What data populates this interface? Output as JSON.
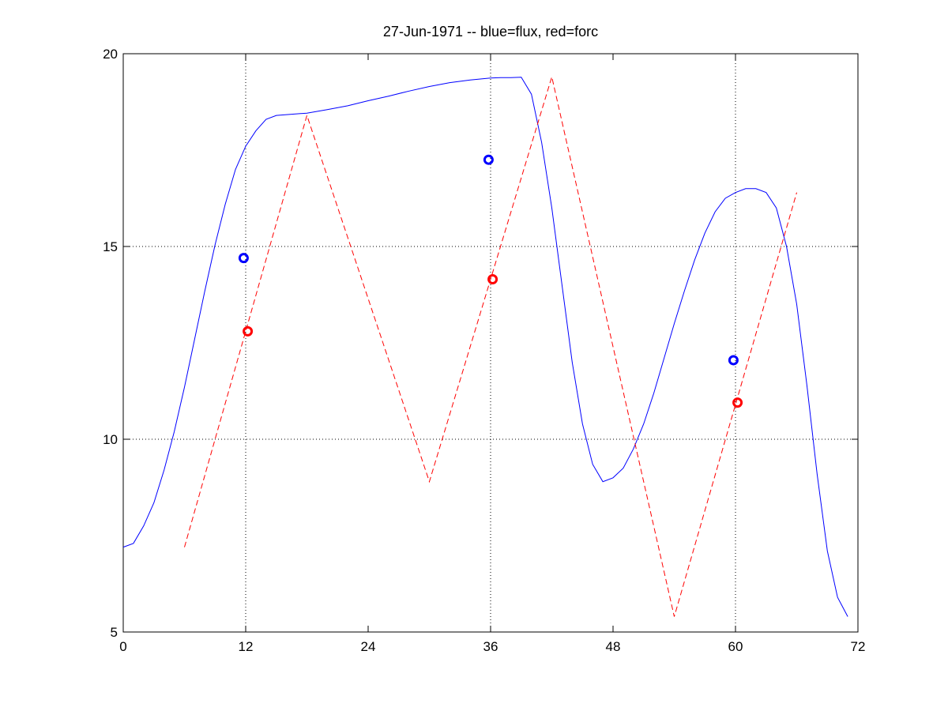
{
  "chart_data": {
    "type": "line",
    "title": "27-Jun-1971 -- blue=flux, red=forc",
    "xlabel": "",
    "ylabel": "",
    "xlim": [
      0,
      72
    ],
    "ylim": [
      5,
      20
    ],
    "xticks": [
      0,
      12,
      24,
      36,
      48,
      60,
      72
    ],
    "yticks": [
      5,
      10,
      15,
      20
    ],
    "grid": true,
    "grid_style": "dotted",
    "grid_x_values": [
      12,
      36,
      60
    ],
    "grid_y_values": [
      10,
      15
    ],
    "series": [
      {
        "color": "#0000ff",
        "style": "solid",
        "x": [
          0,
          1,
          2,
          3,
          4,
          5,
          6,
          7,
          8,
          9,
          10,
          11,
          12,
          13,
          14,
          15,
          16,
          17,
          18,
          20,
          22,
          24,
          26,
          28,
          30,
          32,
          34,
          36,
          37,
          38,
          39,
          40,
          41,
          42,
          43,
          44,
          45,
          46,
          47,
          48,
          49,
          50,
          51,
          52,
          53,
          54,
          55,
          56,
          57,
          58,
          59,
          60,
          61,
          62,
          63,
          64,
          65,
          66,
          67,
          68,
          69,
          70,
          71
        ],
        "y": [
          7.2,
          7.3,
          7.75,
          8.35,
          9.2,
          10.2,
          11.35,
          12.6,
          13.85,
          15.05,
          16.1,
          17.0,
          17.6,
          18.0,
          18.3,
          18.4,
          18.42,
          18.44,
          18.46,
          18.55,
          18.65,
          18.78,
          18.9,
          19.03,
          19.15,
          19.25,
          19.32,
          19.37,
          19.38,
          19.38,
          19.39,
          18.95,
          17.7,
          16.0,
          14.0,
          12.0,
          10.4,
          9.35,
          8.9,
          9.0,
          9.25,
          9.75,
          10.4,
          11.2,
          12.1,
          13.0,
          13.85,
          14.65,
          15.35,
          15.9,
          16.25,
          16.4,
          16.5,
          16.5,
          16.4,
          16.0,
          15.0,
          13.5,
          11.4,
          9.1,
          7.1,
          5.9,
          5.4
        ]
      },
      {
        "color": "#ff0000",
        "style": "dashed",
        "x": [
          6,
          18,
          30,
          42,
          54,
          66
        ],
        "y": [
          7.2,
          18.4,
          8.9,
          19.4,
          5.4,
          16.4
        ]
      }
    ],
    "markers": [
      {
        "x": 11.8,
        "y": 14.7,
        "color": "#0000ff",
        "shape": "o"
      },
      {
        "x": 35.8,
        "y": 17.25,
        "color": "#0000ff",
        "shape": "o"
      },
      {
        "x": 59.8,
        "y": 12.05,
        "color": "#0000ff",
        "shape": "o"
      },
      {
        "x": 12.2,
        "y": 12.8,
        "color": "#ff0000",
        "shape": "o"
      },
      {
        "x": 36.2,
        "y": 14.15,
        "color": "#ff0000",
        "shape": "o"
      },
      {
        "x": 60.2,
        "y": 10.95,
        "color": "#ff0000",
        "shape": "o"
      }
    ]
  }
}
